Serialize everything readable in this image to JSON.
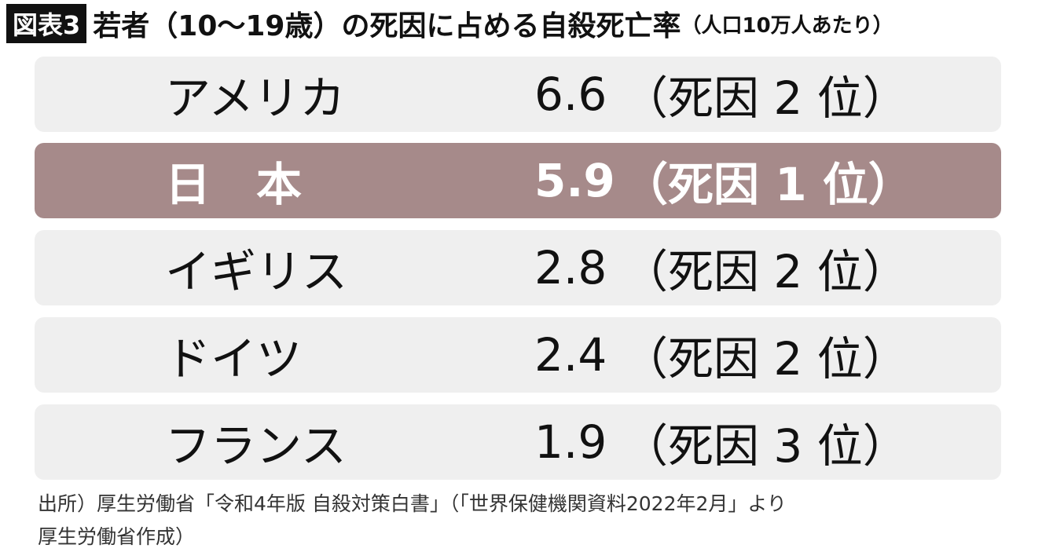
{
  "header": {
    "label": "図表3",
    "title": "若者（10〜19歳）の死因に占める自殺死亡率",
    "subtitle": "（人口10万人あたり）"
  },
  "table": {
    "rows": [
      [
        "アメリカ",
        "6.6",
        "（死因 2 位）"
      ],
      [
        "日　本",
        "5.9",
        "（死因 1 位）"
      ],
      [
        "イギリス",
        "2.8",
        "（死因 2 位）"
      ],
      [
        "ドイツ",
        "2.4",
        "（死因 2 位）"
      ],
      [
        "フランス",
        "1.9",
        "（死因 3 位）"
      ]
    ]
  },
  "source": [
    "出所）厚生労働省「令和4年版 自殺対策白書」（「世界保健機関資料2022年2月」より",
    "厚生労働省作成）"
  ]
}
